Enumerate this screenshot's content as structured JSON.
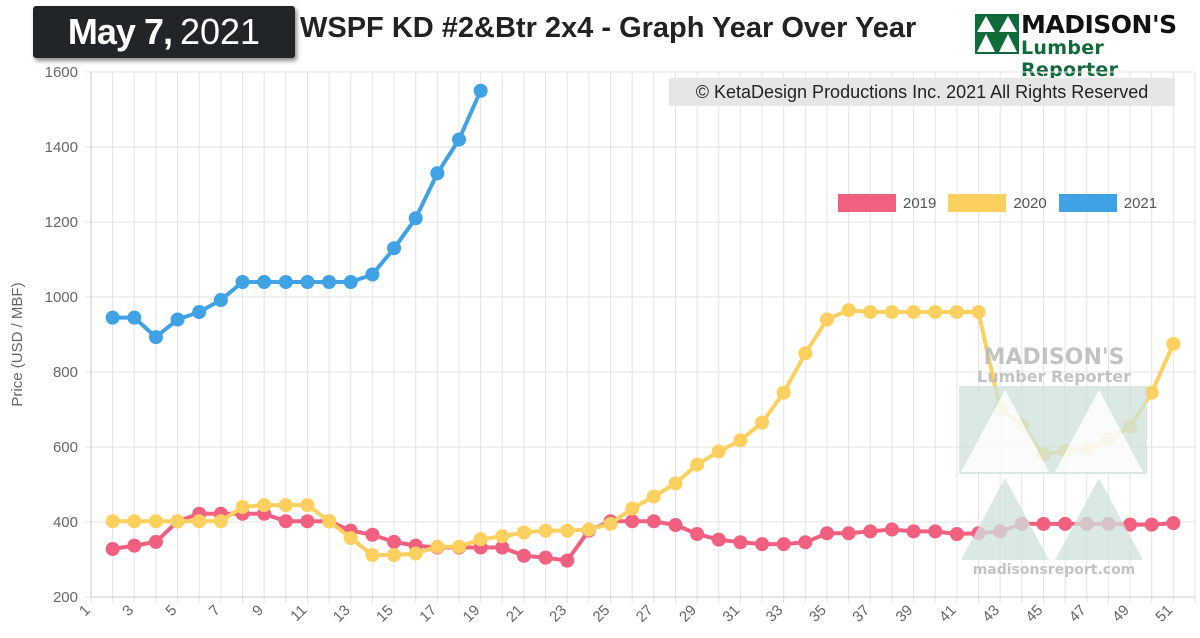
{
  "header": {
    "date_month_day": "May 7,",
    "date_year": "2021",
    "title": "WSPF KD #2&Btr 2x4 - Graph Year Over Year"
  },
  "logo": {
    "line1": "MADISON'S",
    "line2": "Lumber Reporter",
    "icon": "triangle-tree-logo-icon"
  },
  "copyright": "© KetaDesign Productions Inc. 2021 All Rights Reserved",
  "watermark": {
    "line1": "MADISON'S",
    "line2": "Lumber Reporter",
    "url": "madisonsreport.com"
  },
  "chart_data": {
    "type": "line",
    "title": "WSPF KD #2&Btr 2x4 - Graph Year Over Year",
    "ylabel": "Price (USD / MBF)",
    "xlabel": "",
    "ylim": [
      200,
      1600
    ],
    "xlim": [
      1,
      52
    ],
    "y_ticks": [
      200,
      400,
      600,
      800,
      1000,
      1200,
      1400,
      1600
    ],
    "x_ticks": [
      1,
      3,
      5,
      7,
      9,
      11,
      13,
      15,
      17,
      19,
      21,
      23,
      25,
      27,
      29,
      31,
      33,
      35,
      37,
      39,
      41,
      43,
      45,
      47,
      49,
      51
    ],
    "grid": true,
    "legend_position": "top-right",
    "series": [
      {
        "name": "2019",
        "color": "#f2607f",
        "x": [
          2,
          3,
          4,
          5,
          6,
          7,
          8,
          9,
          10,
          11,
          12,
          13,
          14,
          15,
          16,
          17,
          18,
          19,
          20,
          21,
          22,
          23,
          24,
          25,
          26,
          27,
          28,
          29,
          30,
          31,
          32,
          33,
          34,
          35,
          36,
          37,
          38,
          39,
          40,
          41,
          42,
          43,
          44,
          45,
          46,
          47,
          48,
          49,
          50,
          51
        ],
        "values": [
          328,
          337,
          347,
          402,
          422,
          422,
          422,
          422,
          402,
          402,
          402,
          377,
          366,
          347,
          337,
          332,
          332,
          332,
          332,
          310,
          305,
          297,
          377,
          402,
          402,
          402,
          392,
          368,
          353,
          346,
          341,
          341,
          346,
          370,
          370,
          375,
          380,
          375,
          375,
          368,
          370,
          375,
          395,
          395,
          395,
          395,
          395,
          393,
          393,
          397
        ]
      },
      {
        "name": "2020",
        "color": "#fcd05e",
        "x": [
          2,
          3,
          4,
          5,
          6,
          7,
          8,
          9,
          10,
          11,
          12,
          13,
          14,
          15,
          16,
          17,
          18,
          19,
          20,
          21,
          22,
          23,
          24,
          25,
          26,
          27,
          28,
          29,
          30,
          31,
          32,
          33,
          34,
          35,
          36,
          37,
          38,
          39,
          40,
          41,
          42,
          43,
          44,
          45,
          46,
          47,
          48,
          49,
          50,
          51
        ],
        "values": [
          402,
          402,
          402,
          402,
          402,
          402,
          440,
          445,
          445,
          445,
          402,
          357,
          312,
          312,
          316,
          334,
          334,
          354,
          362,
          372,
          377,
          377,
          380,
          395,
          436,
          468,
          503,
          553,
          588,
          618,
          665,
          745,
          850,
          940,
          965,
          960,
          960,
          960,
          960,
          960,
          960,
          700,
          660,
          580,
          590,
          595,
          620,
          655,
          745,
          875
        ]
      },
      {
        "name": "2021",
        "color": "#3fa2e4",
        "x": [
          2,
          3,
          4,
          5,
          6,
          7,
          8,
          9,
          10,
          11,
          12,
          13,
          14,
          15,
          16,
          17,
          18,
          19
        ],
        "values": [
          945,
          945,
          893,
          940,
          960,
          992,
          1040,
          1040,
          1040,
          1040,
          1040,
          1040,
          1060,
          1130,
          1210,
          1330,
          1420,
          1550
        ]
      }
    ]
  }
}
